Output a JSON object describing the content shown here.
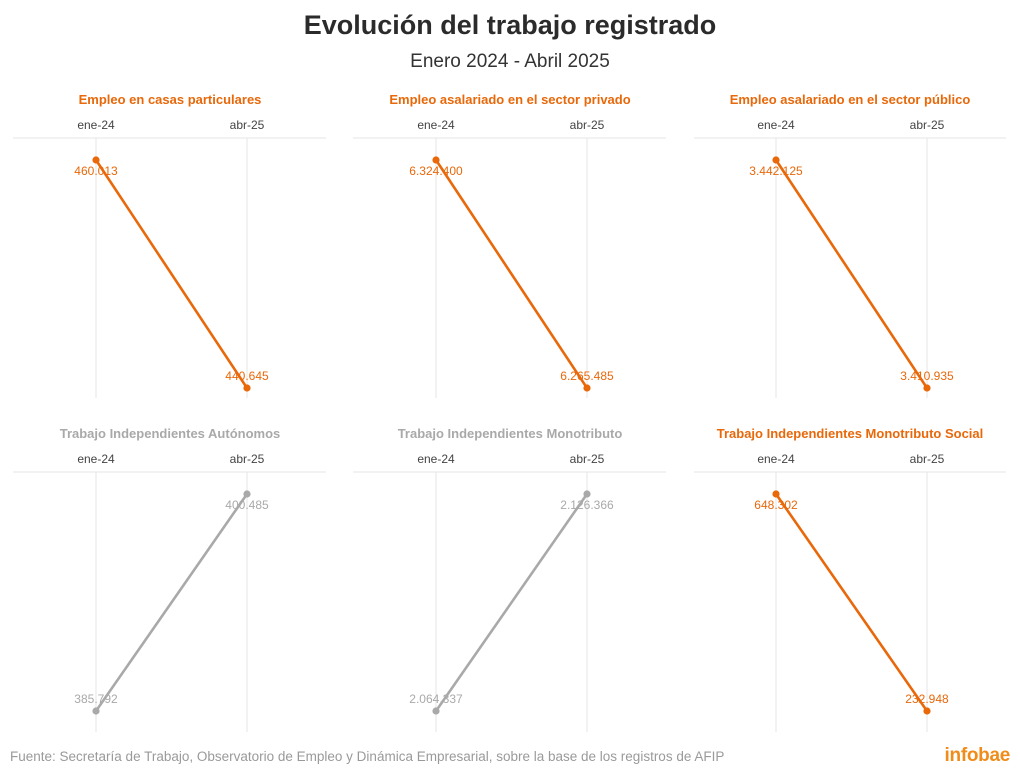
{
  "title": "Evolución del trabajo registrado",
  "subtitle": "Enero 2024 - Abril 2025",
  "source": "Fuente: Secretaría de Trabajo, Observatorio de Empleo y Dinámica Empresarial, sobre la base de los registros de AFIP",
  "brand": "infobae",
  "colors": {
    "decrease": "#e8680a",
    "increase": "#a9a9a9",
    "grid": "#e6e6e6",
    "axis_text": "#444444"
  },
  "chart_data": [
    {
      "type": "line",
      "title": "Empleo en casas particulares",
      "x": [
        "ene-24",
        "abr-25"
      ],
      "values": [
        460013,
        440645
      ],
      "labels": [
        "460.013",
        "440.645"
      ],
      "color_key": "decrease"
    },
    {
      "type": "line",
      "title": "Empleo asalariado en el sector privado",
      "x": [
        "ene-24",
        "abr-25"
      ],
      "values": [
        6324400,
        6265485
      ],
      "labels": [
        "6.324.400",
        "6.265.485"
      ],
      "color_key": "decrease"
    },
    {
      "type": "line",
      "title": "Empleo asalariado en el sector público",
      "x": [
        "ene-24",
        "abr-25"
      ],
      "values": [
        3442125,
        3410935
      ],
      "labels": [
        "3.442.125",
        "3.410.935"
      ],
      "color_key": "decrease"
    },
    {
      "type": "line",
      "title": "Trabajo Independientes Autónomos",
      "x": [
        "ene-24",
        "abr-25"
      ],
      "values": [
        385792,
        400485
      ],
      "labels": [
        "385.792",
        "400.485"
      ],
      "color_key": "increase"
    },
    {
      "type": "line",
      "title": "Trabajo Independientes Monotributo",
      "x": [
        "ene-24",
        "abr-25"
      ],
      "values": [
        2064337,
        2126366
      ],
      "labels": [
        "2.064.337",
        "2.126.366"
      ],
      "color_key": "increase"
    },
    {
      "type": "line",
      "title": "Trabajo Independientes Monotributo Social",
      "x": [
        "ene-24",
        "abr-25"
      ],
      "values": [
        648302,
        232948
      ],
      "labels": [
        "648.302",
        "232.948"
      ],
      "color_key": "decrease"
    }
  ]
}
